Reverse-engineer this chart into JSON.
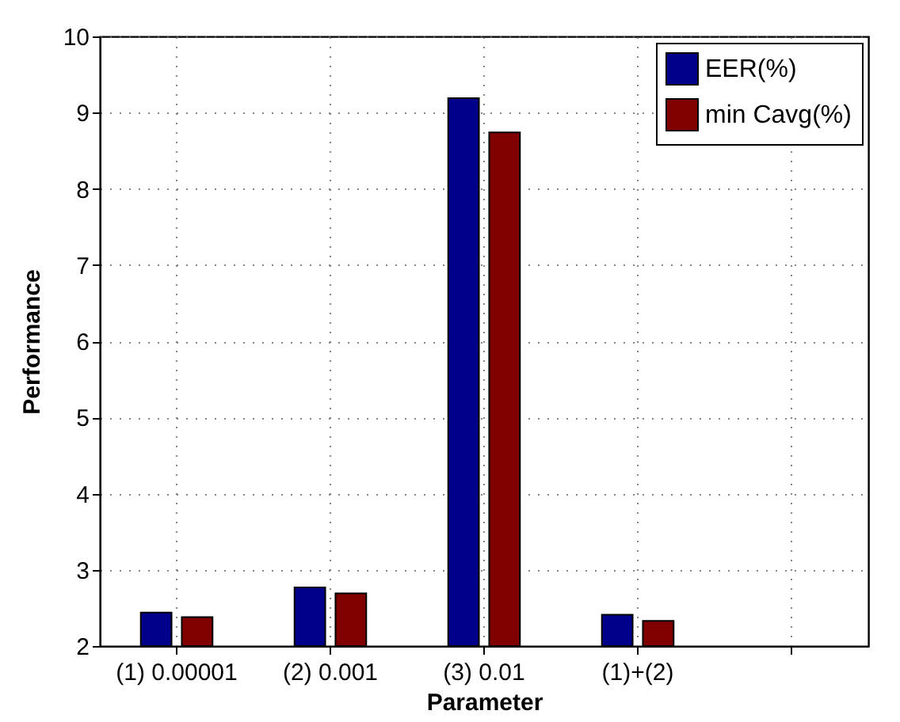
{
  "chart_data": {
    "type": "bar",
    "xlabel": "Parameter",
    "ylabel": "Performance",
    "categories": [
      "(1) 0.00001",
      "(2) 0.001",
      "(3) 0.01",
      "(1)+(2)",
      null
    ],
    "series": [
      {
        "name": "EER(%)",
        "color": "#00008b",
        "values": [
          2.44,
          2.77,
          9.19,
          2.41,
          null
        ]
      },
      {
        "name": "min Cavg(%)",
        "color": "#800000",
        "values": [
          2.38,
          2.69,
          8.74,
          2.33,
          null
        ]
      }
    ],
    "ylim": [
      2,
      10
    ],
    "yticks": [
      2,
      3,
      4,
      5,
      6,
      7,
      8,
      9,
      10
    ],
    "grid": true,
    "legend": "top right"
  }
}
